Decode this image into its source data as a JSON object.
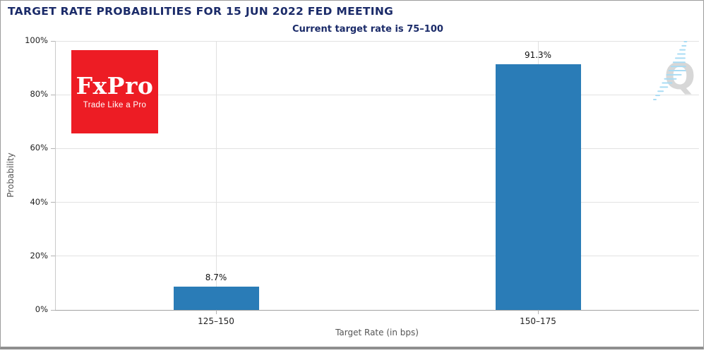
{
  "header": {
    "title": "TARGET RATE PROBABILITIES FOR 15 JUN 2022 FED MEETING",
    "subtitle": "Current target rate is 75–100"
  },
  "logo": {
    "wordmark": "FxPro",
    "tagline": "Trade Like a Pro",
    "background_color": "#ed1c24",
    "text_color": "#ffffff"
  },
  "watermark": {
    "letter": "Q",
    "letter_color": "#d7d7d7",
    "accent_color": "#a9dcf4"
  },
  "chart_data": {
    "type": "bar",
    "title": "TARGET RATE PROBABILITIES FOR 15 JUN 2022 FED MEETING",
    "subtitle": "Current target rate is 75–100",
    "categories": [
      "125–150",
      "150–175"
    ],
    "values": [
      8.7,
      91.3
    ],
    "value_labels": [
      "8.7%",
      "91.3%"
    ],
    "xlabel": "Target Rate (in bps)",
    "ylabel": "Probability",
    "ylim": [
      0,
      100
    ],
    "yticks": [
      0,
      20,
      40,
      60,
      80,
      100
    ],
    "ytick_labels": [
      "0%",
      "20%",
      "40%",
      "60%",
      "80%",
      "100%"
    ],
    "bar_color": "#2a7cb7",
    "grid": "horizontal gridlines every 20%, vertical gridline at each category center",
    "legend_position": "none"
  }
}
